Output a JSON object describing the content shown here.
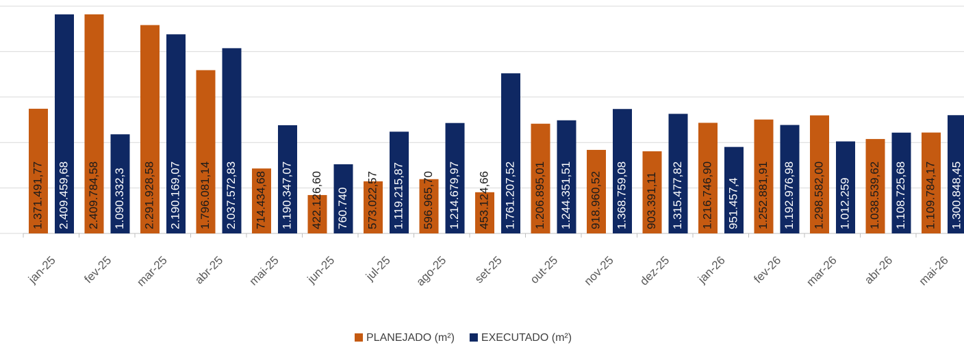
{
  "chart_data": {
    "type": "bar",
    "categories": [
      "jan-25",
      "fev-25",
      "mar-25",
      "abr-25",
      "mai-25",
      "jun-25",
      "jul-25",
      "ago-25",
      "set-25",
      "out-25",
      "nov-25",
      "dez-25",
      "jan-26",
      "fev-26",
      "mar-26",
      "abr-26",
      "mai-26"
    ],
    "series": [
      {
        "name": "PLANEJADO (m²)",
        "color": "#c55a11",
        "values": [
          1371491.77,
          2409784.58,
          2291928.58,
          1796081.14,
          714434.68,
          422126.6,
          573022.57,
          596965.7,
          453124.66,
          1206895.01,
          918960.52,
          903391.11,
          1216746.9,
          1252881.91,
          1298582.0,
          1038539.62,
          1109784.17
        ],
        "value_labels": [
          "1.371.491,77",
          "2.409.784,58",
          "2.291.928,58",
          "1.796.081,14",
          "714.434,68",
          "422.126,60",
          "573.022,57",
          "596.965,70",
          "453.124,66",
          "1.206.895,01",
          "918.960,52",
          "903.391,11",
          "1.216.746,90",
          "1.252.881,91",
          "1.298.582,00",
          "1.038.539,62",
          "1.109.784,17"
        ]
      },
      {
        "name": "EXECUTADO (m²)",
        "color": "#0f2863",
        "values": [
          2409459.68,
          1090332.3,
          2190169.07,
          2037572.83,
          1190347.07,
          760740,
          1119215.87,
          1214679.97,
          1761207.52,
          1244351.51,
          1368759.08,
          1315477.82,
          951457.4,
          1192976.98,
          1012259,
          1108725.68,
          1300848.45
        ],
        "value_labels": [
          "2.409.459,68",
          "1.090.332,3",
          "2.190.169,07",
          "2.037.572,83",
          "1.190.347,07",
          "760.740",
          "1.119.215,87",
          "1.214.679,97",
          "1.761.207,52",
          "1.244.351,51",
          "1.368.759,08",
          "1.315.477,82",
          "951.457,4",
          "1.192.976,98",
          "1.012.259",
          "1.108.725,68",
          "1.300.848,45"
        ]
      }
    ],
    "ylim": [
      0,
      2500000
    ],
    "yticks": [
      0,
      500000,
      1000000,
      1500000,
      2000000,
      2500000
    ],
    "grid": true
  }
}
